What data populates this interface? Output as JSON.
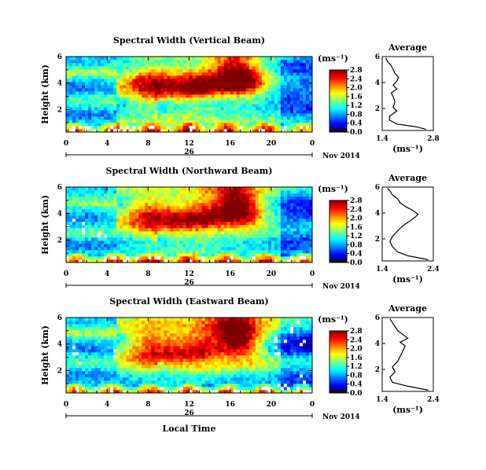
{
  "chart_data": [
    {
      "type": "heatmap",
      "title": "Spectral Width (Vertical Beam)",
      "ylabel": "Height (km)",
      "y_ticks": [
        "6",
        "4",
        "2"
      ],
      "x_ticks": [
        "0",
        "4",
        "8",
        "12",
        "16",
        "20",
        "0"
      ],
      "x_date_label": "26",
      "date_label": "Nov 2014",
      "xlim_hours": [
        0,
        24
      ],
      "ylim_km": [
        0.3,
        6
      ],
      "colorbar": {
        "unit": "(ms⁻¹)",
        "tick_labels": [
          "2.8",
          "2.4",
          "2.0",
          "1.6",
          "1.2",
          "0.8",
          "0.4",
          "0.0"
        ],
        "range": [
          0.0,
          2.8
        ]
      },
      "profile": {
        "title": "Average",
        "xlabel": "(ms⁻¹)",
        "x_ticks": [
          "1.4",
          "2.8"
        ],
        "y_ticks": [
          "6",
          "4",
          "2"
        ],
        "xlim": [
          1.4,
          2.8
        ],
        "ylim": [
          0.3,
          6
        ],
        "x": [
          2.6,
          2.3,
          1.8,
          1.6,
          1.6,
          1.8,
          1.7,
          1.75,
          1.7,
          1.65,
          1.8,
          1.7,
          1.8,
          1.85,
          1.75,
          1.7,
          1.65,
          1.55,
          1.5
        ],
        "y": [
          0.4,
          0.6,
          0.8,
          1.1,
          1.4,
          1.8,
          2.1,
          2.5,
          2.9,
          3.2,
          3.5,
          3.8,
          4.1,
          4.4,
          4.7,
          5.0,
          5.3,
          5.6,
          5.9
        ]
      }
    },
    {
      "type": "heatmap",
      "title": "Spectral Width (Northward Beam)",
      "ylabel": "Height (km)",
      "y_ticks": [
        "6",
        "4",
        "2"
      ],
      "x_ticks": [
        "0",
        "4",
        "8",
        "12",
        "16",
        "20",
        "0"
      ],
      "x_date_label": "26",
      "date_label": "Nov 2014",
      "xlim_hours": [
        0,
        24
      ],
      "ylim_km": [
        0.3,
        6
      ],
      "colorbar": {
        "unit": "(ms⁻¹)",
        "tick_labels": [
          "2.8",
          "2.4",
          "2.0",
          "1.6",
          "1.2",
          "0.8",
          "0.4",
          "0.0"
        ],
        "range": [
          0.0,
          2.8
        ]
      },
      "profile": {
        "title": "Average",
        "xlabel": "(ms⁻¹)",
        "x_ticks": [
          "1.4",
          "2.4"
        ],
        "y_ticks": [
          "6",
          "4",
          "2"
        ],
        "xlim": [
          1.4,
          2.4
        ],
        "ylim": [
          0.3,
          6
        ],
        "x": [
          2.3,
          1.9,
          1.7,
          1.6,
          1.55,
          1.6,
          1.7,
          1.8,
          1.95,
          2.05,
          2.1,
          2.0,
          1.85,
          1.75,
          1.7,
          1.6,
          1.55,
          1.5
        ],
        "y": [
          0.4,
          0.7,
          1.0,
          1.4,
          1.8,
          2.2,
          2.6,
          3.0,
          3.4,
          3.7,
          3.9,
          4.2,
          4.5,
          4.8,
          5.1,
          5.4,
          5.7,
          5.9
        ]
      }
    },
    {
      "type": "heatmap",
      "title": "Spectral Width (Eastward Beam)",
      "ylabel": "Height (km)",
      "y_ticks": [
        "6",
        "4",
        "2"
      ],
      "x_ticks": [
        "0",
        "4",
        "8",
        "12",
        "16",
        "20",
        "0"
      ],
      "x_date_label": "26",
      "date_label": "Nov 2014",
      "xlabel": "Local Time",
      "xlim_hours": [
        0,
        24
      ],
      "ylim_km": [
        0.3,
        6
      ],
      "colorbar": {
        "unit": "(ms⁻¹)",
        "tick_labels": [
          "2.8",
          "2.4",
          "2.0",
          "1.6",
          "1.2",
          "0.8",
          "0.4",
          "0.0"
        ],
        "range": [
          0.0,
          2.8
        ]
      },
      "profile": {
        "title": "Average",
        "xlabel": "(ms⁻¹)",
        "x_ticks": [
          "1.4",
          "2.4"
        ],
        "y_ticks": [
          "6",
          "4",
          "2"
        ],
        "xlim": [
          1.4,
          2.4
        ],
        "ylim": [
          0.3,
          6
        ],
        "x": [
          2.3,
          1.9,
          1.6,
          1.55,
          1.65,
          1.6,
          1.7,
          1.75,
          1.8,
          1.85,
          1.75,
          1.9,
          1.8,
          1.7,
          1.65,
          1.6,
          1.55
        ],
        "y": [
          0.4,
          0.7,
          1.0,
          1.4,
          1.8,
          2.2,
          2.6,
          3.0,
          3.4,
          3.8,
          4.1,
          4.4,
          4.7,
          5.0,
          5.3,
          5.6,
          5.9
        ]
      }
    }
  ]
}
